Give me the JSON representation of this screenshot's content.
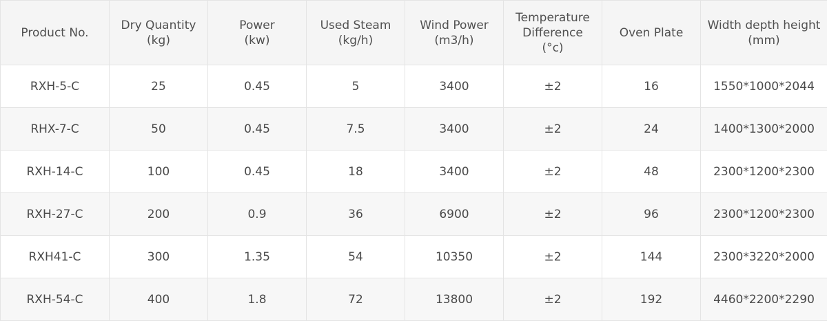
{
  "table": {
    "headers": [
      [
        "Product No."
      ],
      [
        "Dry Quantity",
        "(kg)"
      ],
      [
        "Power",
        "(kw)"
      ],
      [
        "Used Steam",
        "(kg/h)"
      ],
      [
        "Wind Power",
        "(m3/h)"
      ],
      [
        "Temperature",
        "Difference",
        "(°c)"
      ],
      [
        "Oven Plate"
      ],
      [
        "Width depth height",
        "(mm)"
      ]
    ],
    "rows": [
      [
        "RXH-5-C",
        "25",
        "0.45",
        "5",
        "3400",
        "±2",
        "16",
        "1550*1000*2044"
      ],
      [
        "RHX-7-C",
        "50",
        "0.45",
        "7.5",
        "3400",
        "±2",
        "24",
        "1400*1300*2000"
      ],
      [
        "RXH-14-C",
        "100",
        "0.45",
        "18",
        "3400",
        "±2",
        "48",
        "2300*1200*2300"
      ],
      [
        "RXH-27-C",
        "200",
        "0.9",
        "36",
        "6900",
        "±2",
        "96",
        "2300*1200*2300"
      ],
      [
        "RXH41-C",
        "300",
        "1.35",
        "54",
        "10350",
        "±2",
        "144",
        "2300*3220*2000"
      ],
      [
        "RXH-54-C",
        "400",
        "1.8",
        "72",
        "13800",
        "±2",
        "192",
        "4460*2200*2290"
      ]
    ]
  },
  "colors": {
    "header_bg": "#f5f5f5",
    "border": "#e4e4e4",
    "text": "#4a4a4a"
  }
}
